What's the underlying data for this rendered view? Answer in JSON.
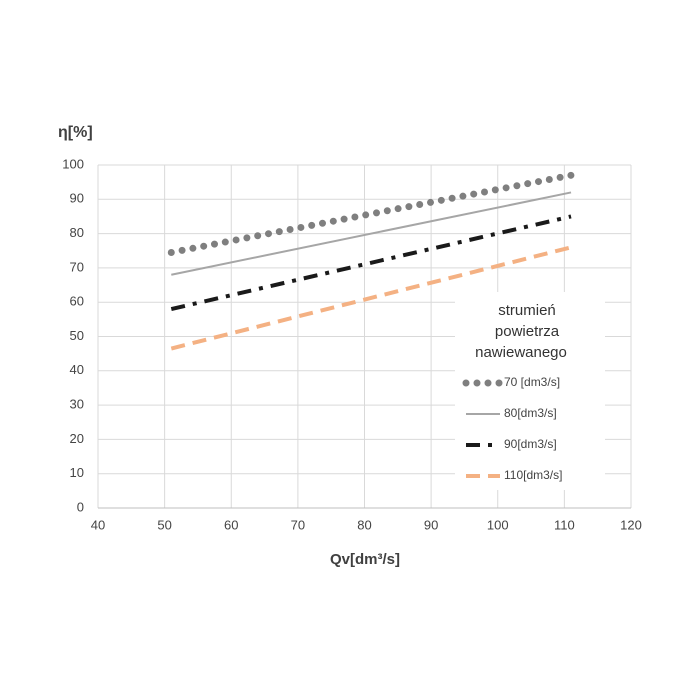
{
  "chart_data": {
    "type": "line",
    "y_label": "η[%]",
    "x_label": "Qv[dm³/s]",
    "legend_title": [
      "strumień",
      "powietrza",
      "nawiewanego"
    ],
    "x": [
      51,
      111
    ],
    "series": [
      {
        "name": "70 [dm3/s]",
        "color": "#7f7f7f",
        "dash": "dotted",
        "values": [
          74.5,
          97
        ]
      },
      {
        "name": "80[dm3/s]",
        "color": "#a6a6a6",
        "dash": "solid",
        "values": [
          68,
          92
        ]
      },
      {
        "name": "90[dm3/s]",
        "color": "#1a1a1a",
        "dash": "dashdot",
        "values": [
          58,
          85
        ]
      },
      {
        "name": "110[dm3/s]",
        "color": "#f4b183",
        "dash": "dashed",
        "values": [
          46.5,
          76
        ]
      }
    ],
    "xlim": [
      40,
      120
    ],
    "xticks": [
      40,
      50,
      60,
      70,
      80,
      90,
      100,
      110,
      120
    ],
    "ylim": [
      0,
      100
    ],
    "yticks": [
      0,
      10,
      20,
      30,
      40,
      50,
      60,
      70,
      80,
      90,
      100
    ],
    "grid": true
  }
}
